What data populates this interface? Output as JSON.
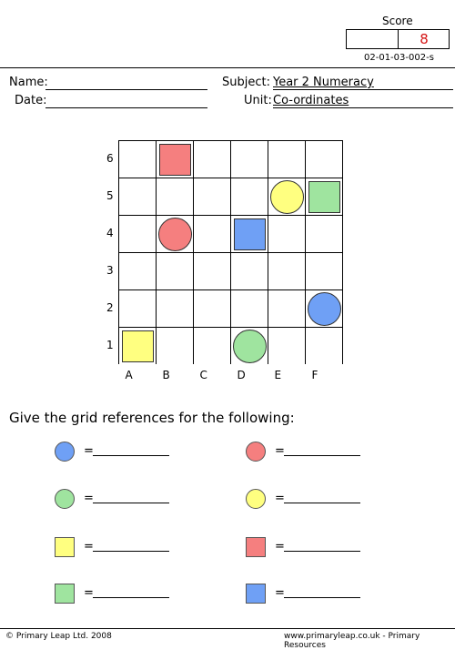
{
  "score": {
    "label": "Score",
    "value": "8"
  },
  "sheet_code": "02-01-03-002-s",
  "header": {
    "name_label": "Name:",
    "date_label": "Date:",
    "subject_label": "Subject:",
    "subject_value": "Year 2 Numeracy",
    "unit_label": "Unit:",
    "unit_value": "Co-ordinates"
  },
  "grid": {
    "row_labels": [
      "6",
      "5",
      "4",
      "3",
      "2",
      "1"
    ],
    "column_labels": [
      "A",
      "B",
      "C",
      "D",
      "E",
      "F"
    ],
    "shapes": [
      {
        "shape": "square",
        "color": "#f57f7f",
        "cell": "B6"
      },
      {
        "shape": "circle",
        "color": "#ffff80",
        "cell": "E5"
      },
      {
        "shape": "square",
        "color": "#9fe49f",
        "cell": "F5"
      },
      {
        "shape": "circle",
        "color": "#f57f7f",
        "cell": "B4"
      },
      {
        "shape": "square",
        "color": "#6fa0f5",
        "cell": "D4"
      },
      {
        "shape": "circle",
        "color": "#6fa0f5",
        "cell": "F2"
      },
      {
        "shape": "square",
        "color": "#ffff80",
        "cell": "A1"
      },
      {
        "shape": "circle",
        "color": "#9fe49f",
        "cell": "D1"
      }
    ]
  },
  "question": "Give  the grid references for the following:",
  "answers": [
    {
      "shape": "circle",
      "color": "#6fa0f5",
      "equals": "="
    },
    {
      "shape": "circle",
      "color": "#f57f7f",
      "equals": "="
    },
    {
      "shape": "circle",
      "color": "#9fe49f",
      "equals": "="
    },
    {
      "shape": "circle",
      "color": "#ffff80",
      "equals": "="
    },
    {
      "shape": "square",
      "color": "#ffff80",
      "equals": "="
    },
    {
      "shape": "square",
      "color": "#f57f7f",
      "equals": "="
    },
    {
      "shape": "square",
      "color": "#9fe49f",
      "equals": "="
    },
    {
      "shape": "square",
      "color": "#6fa0f5",
      "equals": "="
    }
  ],
  "footer": {
    "copyright": "© Primary Leap Ltd. 2008",
    "website": "www.primaryleap.co.uk  -  Primary Resources"
  }
}
